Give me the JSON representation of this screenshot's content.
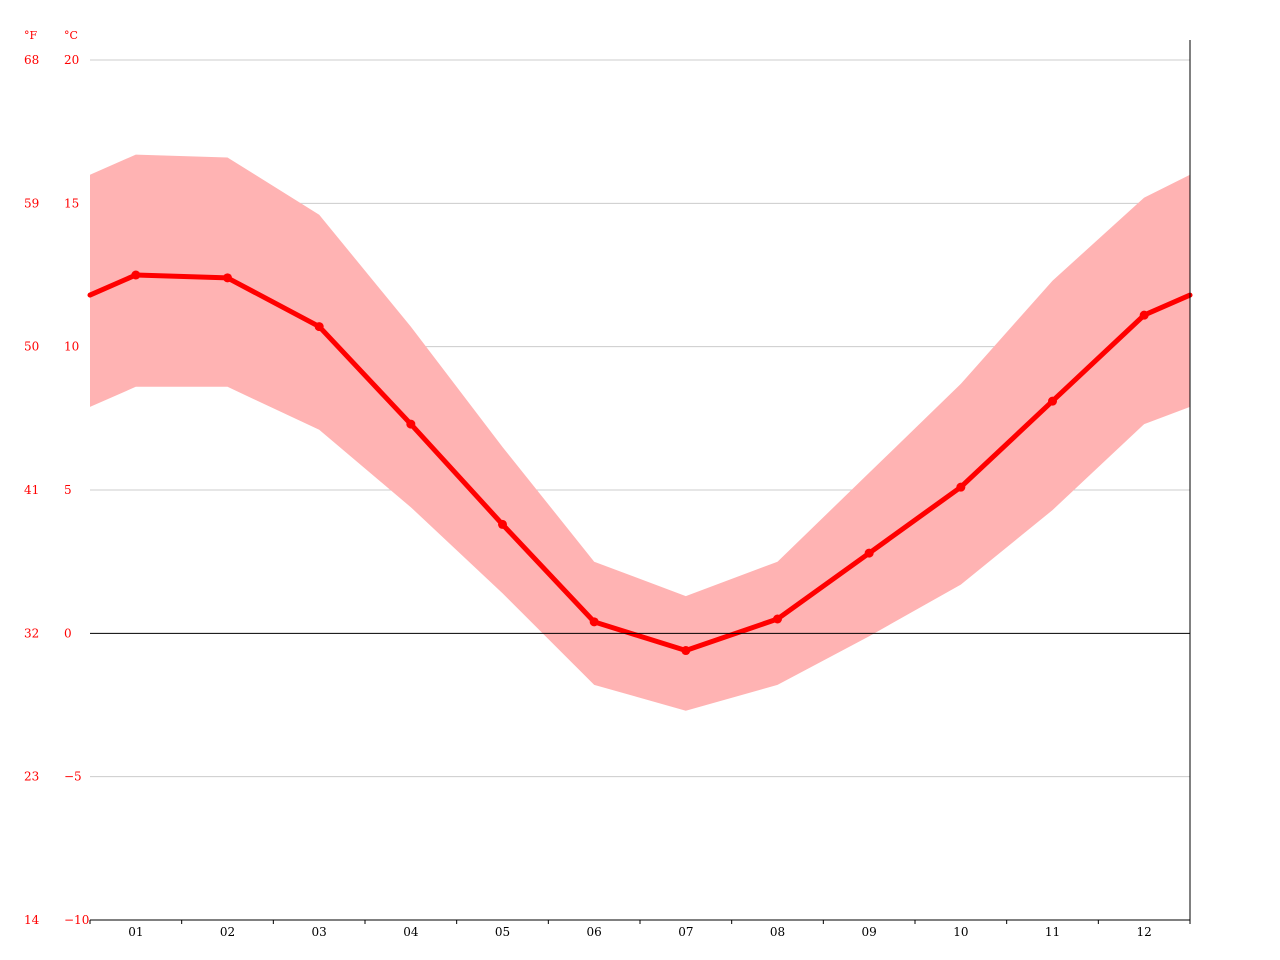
{
  "chart_data": {
    "type": "line",
    "title": "",
    "xlabel": "",
    "ylabel": "",
    "units": {
      "fahrenheit": "°F",
      "celsius": "°C"
    },
    "categories": [
      "01",
      "02",
      "03",
      "04",
      "05",
      "06",
      "07",
      "08",
      "09",
      "10",
      "11",
      "12"
    ],
    "ylim": [
      -10,
      20
    ],
    "y_ticks_c": [
      20,
      15,
      10,
      5,
      0,
      -5,
      -10
    ],
    "y_ticks_f": [
      68,
      59,
      50,
      41,
      32,
      23,
      14
    ],
    "series": [
      {
        "role": "mean",
        "values": [
          12.5,
          12.4,
          10.7,
          7.3,
          3.8,
          0.4,
          -0.6,
          0.5,
          2.8,
          5.1,
          8.1,
          11.1
        ]
      },
      {
        "role": "max",
        "values": [
          16.7,
          16.6,
          14.6,
          10.7,
          6.5,
          2.5,
          1.3,
          2.5,
          5.6,
          8.7,
          12.3,
          15.2
        ]
      },
      {
        "role": "min",
        "values": [
          8.6,
          8.6,
          7.1,
          4.4,
          1.4,
          -1.8,
          -2.7,
          -1.8,
          -0.1,
          1.7,
          4.3,
          7.3
        ]
      }
    ],
    "edge_values": {
      "mean": [
        11.8,
        11.8
      ],
      "max": [
        16.0,
        16.0
      ],
      "min": [
        7.9,
        7.9
      ]
    },
    "colors": {
      "line": "#ff0000",
      "band": "#ffb3b3",
      "tick_text": "#ff0000",
      "grid": "#cccccc",
      "axis": "#000000",
      "x_text": "#000000"
    },
    "grid": true,
    "legend": "none"
  }
}
